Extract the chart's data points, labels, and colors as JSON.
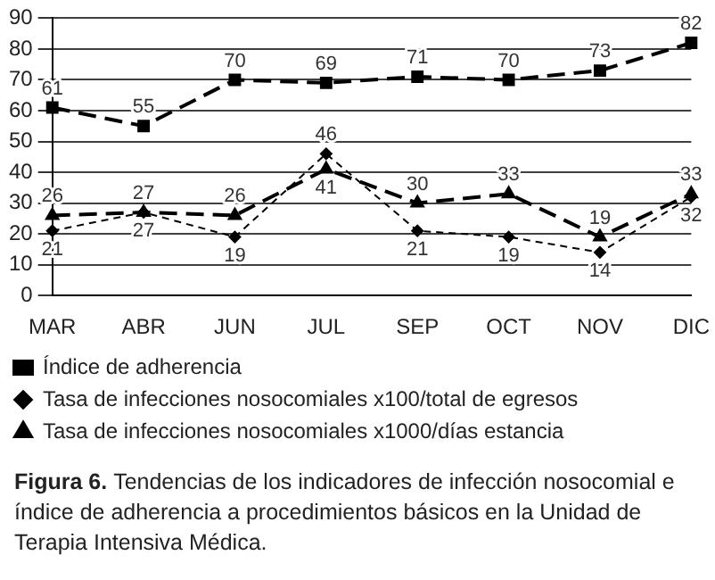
{
  "chart_data": {
    "type": "line",
    "categories": [
      "MAR",
      "ABR",
      "JUN",
      "JUL",
      "SEP",
      "OCT",
      "NOV",
      "DIC"
    ],
    "series": [
      {
        "name": "Índice de adherencia",
        "color": "#000000",
        "marker": "square",
        "line_style": "dashed",
        "values": [
          61,
          55,
          70,
          69,
          71,
          70,
          73,
          82
        ]
      },
      {
        "name": "Tasa de infecciones nosocomiales x100/total de egresos",
        "color": "#000000",
        "marker": "diamond",
        "line_style": "dotted",
        "values": [
          21,
          27,
          19,
          46,
          21,
          19,
          14,
          32
        ]
      },
      {
        "name": "Tasa de infecciones nosocomiales x1000/días estancia",
        "color": "#000000",
        "marker": "triangle",
        "line_style": "dashed",
        "values": [
          26,
          27,
          26,
          41,
          30,
          33,
          19,
          33
        ]
      }
    ],
    "ylim": [
      0,
      90
    ],
    "yticks": [
      0,
      10,
      20,
      30,
      40,
      50,
      60,
      70,
      80,
      90
    ],
    "grid": "y",
    "legend": "bottom",
    "data_labels": true,
    "annotations": [
      "Figura 6.",
      "Tendencias de los indicadores de infección nosocomial e índice de adherencia a procedimientos básicos en la Unidad de Terapia Intensiva Médica."
    ]
  }
}
